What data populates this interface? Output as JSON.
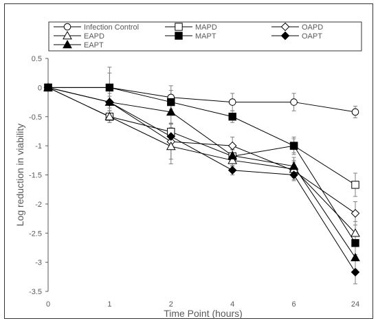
{
  "chart_data": {
    "type": "line",
    "categories": [
      "0",
      "1",
      "2",
      "4",
      "6",
      "24"
    ],
    "xlabel": "Time Point (hours)",
    "ylabel": "Log reduction in viability",
    "ylim": [
      -3.5,
      0.5
    ],
    "yticks": [
      0.5,
      0,
      -0.5,
      -1,
      -1.5,
      -2,
      -2.5,
      -3,
      -3.5
    ],
    "ytick_labels": [
      "0.5",
      "0",
      "-0.5",
      "-1",
      "-1.5",
      "-2",
      "-2.5",
      "-3",
      "-3.5"
    ],
    "grid": false,
    "legend_position": "top",
    "series": [
      {
        "name": "Infection Control",
        "marker": "circle-open",
        "values": [
          0,
          0,
          -0.17,
          -0.25,
          -0.25,
          -0.42
        ],
        "errors": [
          0,
          0.35,
          0.2,
          0.15,
          0.15,
          0.1
        ]
      },
      {
        "name": "MAPD",
        "marker": "square-open",
        "values": [
          0,
          -0.5,
          -0.76,
          -1.18,
          -1.0,
          -1.67
        ],
        "errors": [
          0,
          0.1,
          0.15,
          0.12,
          0.12,
          0.2
        ]
      },
      {
        "name": "OAPD",
        "marker": "diamond-open",
        "values": [
          0,
          -0.25,
          -0.93,
          -1.0,
          -1.43,
          -2.16
        ],
        "errors": [
          0,
          0.1,
          0.3,
          0.15,
          0.15,
          0.2
        ]
      },
      {
        "name": "EAPD",
        "marker": "triangle-open",
        "values": [
          0,
          -0.5,
          -1.01,
          -1.25,
          -1.4,
          -2.5
        ],
        "errors": [
          0,
          0.1,
          0.3,
          0.1,
          0.15,
          0.2
        ]
      },
      {
        "name": "MAPT",
        "marker": "square-filled",
        "values": [
          0,
          0,
          -0.25,
          -0.5,
          -1.0,
          -2.67
        ],
        "errors": [
          0,
          0.25,
          0.2,
          0.1,
          0.15,
          0.2
        ]
      },
      {
        "name": "OAPT",
        "marker": "diamond-filled",
        "values": [
          0,
          -0.25,
          -0.84,
          -1.42,
          -1.5,
          -3.17
        ],
        "errors": [
          0,
          0.15,
          0.15,
          0.08,
          0.1,
          0.2
        ]
      },
      {
        "name": "EAPT",
        "marker": "triangle-filled",
        "values": [
          0,
          -0.25,
          -0.42,
          -1.17,
          -1.35,
          -2.92
        ],
        "errors": [
          0,
          0.2,
          0.2,
          0.1,
          0.15,
          0.2
        ]
      }
    ]
  }
}
